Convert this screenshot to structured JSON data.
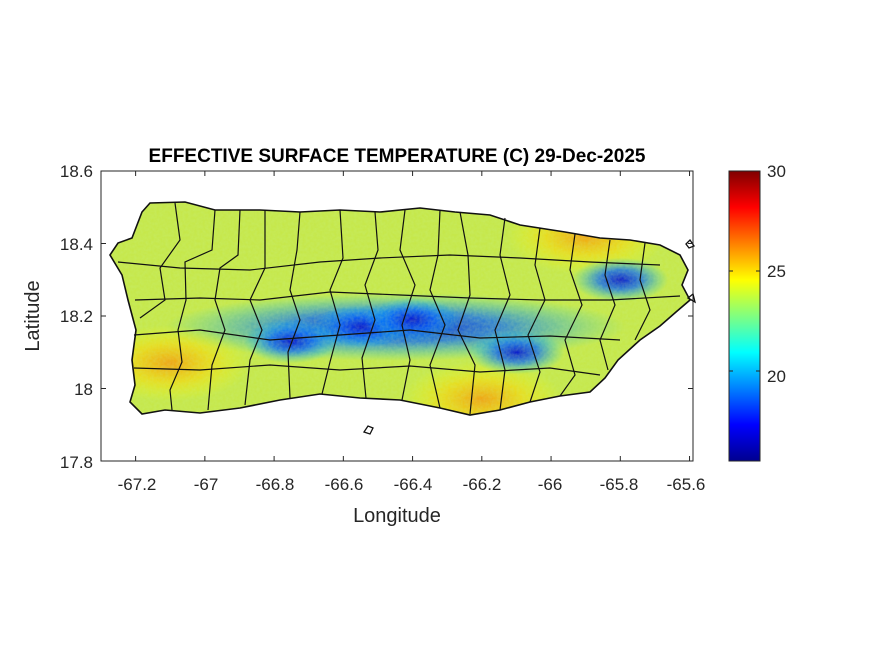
{
  "map": {
    "title": "EFFECTIVE SURFACE TEMPERATURE (C) 29-Dec-2025",
    "xlabel": "Longitude",
    "ylabel": "Latitude",
    "x_range": [
      -67.3,
      -65.59
    ],
    "y_range": [
      17.8,
      18.6
    ],
    "x_ticks": [
      "-67.2",
      "-67",
      "-66.8",
      "-66.6",
      "-66.4",
      "-66.2",
      "-66",
      "-65.8",
      "-65.6"
    ],
    "y_ticks": [
      "18.6",
      "18.4",
      "18.2",
      "18"
    ],
    "y_tick_bottom": "17.8",
    "region": "Puerto Rico",
    "colormap": "jet",
    "colorbar": {
      "min": 15.5,
      "max": 30,
      "ticks": [
        "30",
        "25",
        "20"
      ],
      "colors": [
        "#00008f",
        "#0000ff",
        "#0080ff",
        "#00ffff",
        "#80ff80",
        "#ffff00",
        "#ff8000",
        "#ff0000",
        "#800000"
      ]
    },
    "field": {
      "base_temperature": 23.6,
      "cool_cores": [
        {
          "lon": -66.75,
          "lat": 18.13,
          "value": 17.0
        },
        {
          "lon": -66.55,
          "lat": 18.17,
          "value": 17.3
        },
        {
          "lon": -66.4,
          "lat": 18.19,
          "value": 18.3
        },
        {
          "lon": -66.1,
          "lat": 18.1,
          "value": 18.5
        },
        {
          "lon": -65.8,
          "lat": 18.3,
          "value": 17.2
        }
      ],
      "warm_areas": [
        {
          "lon": -67.1,
          "lat": 18.07,
          "value": 26.2
        },
        {
          "lon": -65.9,
          "lat": 18.42,
          "value": 25.6
        },
        {
          "lon": -66.2,
          "lat": 17.97,
          "value": 25.3
        }
      ]
    }
  }
}
